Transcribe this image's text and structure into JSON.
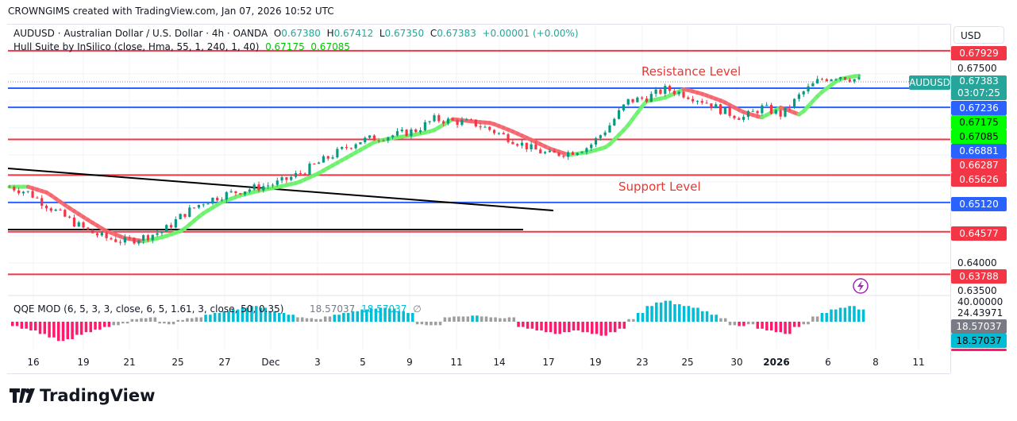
{
  "header": {
    "attribution": "CROWNGIMS created with TradingView.com, Jan 07, 2026 10:52 UTC"
  },
  "legend": {
    "symbol": "AUDUSD · Australian Dollar / U.S. Dollar · 4h · OANDA",
    "o_label": "O",
    "o": "0.67380",
    "h_label": "H",
    "h": "0.67412",
    "l_label": "L",
    "l": "0.67350",
    "c_label": "C",
    "c": "0.67383",
    "change": "+0.00001 (+0.00%)",
    "indicator": "Hull Suite by InSilico (close, Hma, 55, 1, 240, 1, 40)",
    "hull1": "0.67175",
    "hull2": "0.67085"
  },
  "annotations": {
    "resistance": "Resistance Level",
    "support": "Support Level"
  },
  "price_axis": {
    "currency": "USD",
    "ticks": [
      "0.67500",
      "0.64000",
      "0.63500"
    ],
    "symbol_tag": "AUDUSD",
    "last_price": "0.67383",
    "countdown": "03:07:25",
    "levels": [
      {
        "value": "0.67929",
        "color": "#f23645"
      },
      {
        "value": "0.67236",
        "color": "#2962ff"
      },
      {
        "value": "0.66881",
        "color": "#2962ff"
      },
      {
        "value": "0.66287",
        "color": "#f23645"
      },
      {
        "value": "0.65626",
        "color": "#f23645"
      },
      {
        "value": "0.65120",
        "color": "#2962ff"
      },
      {
        "value": "0.64577",
        "color": "#f23645"
      },
      {
        "value": "0.63788",
        "color": "#f23645"
      }
    ],
    "hull_tags": [
      "0.67175",
      "0.67085"
    ],
    "qqe_ticks": [
      "40.00000",
      "24.43971"
    ],
    "qqe_tags": [
      "18.57037",
      "18.57037"
    ]
  },
  "qqe": {
    "label": "QQE MOD (6, 5, 3, 3, close, 6, 5, 1.61, 3, close, 50, 0.35)",
    "v1": "18.57037",
    "v2": "18.57037",
    "na": "∅",
    "values": [
      -5,
      -8,
      -10,
      -14,
      -18,
      -22,
      -20,
      -15,
      -12,
      -9,
      -6,
      -4,
      -2,
      3,
      4,
      5,
      -2,
      -3,
      2,
      4,
      5,
      8,
      10,
      12,
      14,
      16,
      18,
      16,
      12,
      10,
      8,
      5,
      4,
      3,
      6,
      8,
      10,
      12,
      14,
      15,
      16,
      15,
      12,
      10,
      -3,
      -4,
      -4,
      5,
      6,
      6,
      7,
      6,
      5,
      4,
      5,
      -6,
      -8,
      -10,
      -12,
      -14,
      -12,
      -10,
      -12,
      -14,
      -16,
      -12,
      -8,
      3,
      10,
      18,
      22,
      24,
      20,
      18,
      16,
      12,
      8,
      4,
      -4,
      -5,
      -3,
      -8,
      -10,
      -12,
      -14,
      -6,
      -3,
      6,
      10,
      14,
      16,
      18,
      14
    ]
  },
  "chart_data": {
    "type": "candlestick",
    "price_path": [
      0.6541,
      0.653,
      0.6505,
      0.6482,
      0.646,
      0.6446,
      0.644,
      0.6448,
      0.646,
      0.649,
      0.6512,
      0.6525,
      0.6534,
      0.6541,
      0.6549,
      0.6565,
      0.6585,
      0.6605,
      0.6625,
      0.6632,
      0.6637,
      0.6645,
      0.6666,
      0.6662,
      0.6659,
      0.6645,
      0.6629,
      0.6612,
      0.66,
      0.6605,
      0.6615,
      0.6651,
      0.6699,
      0.6706,
      0.6722,
      0.6712,
      0.6699,
      0.668,
      0.6669,
      0.6688,
      0.6674,
      0.6713,
      0.674,
      0.6747,
      0.6738
    ],
    "x_labels": [
      "16",
      "19",
      "21",
      "25",
      "27",
      "Dec",
      "3",
      "5",
      "9",
      "11",
      "14",
      "17",
      "19",
      "23",
      "25",
      "30",
      "2026",
      "6",
      "8",
      "11"
    ]
  },
  "brand": {
    "name": "TradingView"
  }
}
